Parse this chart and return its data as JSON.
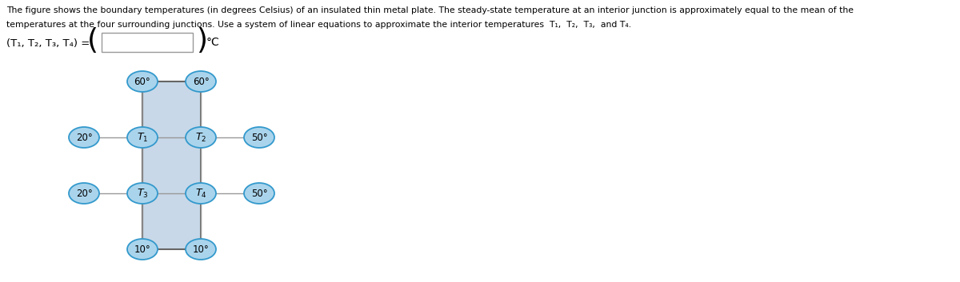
{
  "line1": "The figure shows the boundary temperatures (in degrees Celsius) of an insulated thin metal plate. The steady-state temperature at an interior junction is approximately equal to the mean of the",
  "line2": "temperatures at the four surrounding junctions. Use a system of linear equations to approximate the interior temperatures  T₁,  T₂,  T₃,  and T₄.",
  "eq_label": "(T₁, T₂, T₃, T₄) =",
  "degree_symbol": "°C",
  "plate_color": "#c8d8e8",
  "plate_border_color": "#666666",
  "node_fill": "#aad4ec",
  "node_border": "#3399cc",
  "line_color": "#999999",
  "boundary_nodes": [
    {
      "label": "60°",
      "col": 1,
      "row": 0
    },
    {
      "label": "60°",
      "col": 2,
      "row": 0
    },
    {
      "label": "20°",
      "col": 0,
      "row": 1
    },
    {
      "label": "50°",
      "col": 3,
      "row": 1
    },
    {
      "label": "20°",
      "col": 0,
      "row": 2
    },
    {
      "label": "50°",
      "col": 3,
      "row": 2
    },
    {
      "label": "10°",
      "col": 1,
      "row": 3
    },
    {
      "label": "10°",
      "col": 2,
      "row": 3
    }
  ],
  "interior_nodes": [
    {
      "label": "T₁",
      "col": 1,
      "row": 1
    },
    {
      "label": "T₂",
      "col": 2,
      "row": 1
    },
    {
      "label": "T₃",
      "col": 1,
      "row": 2
    },
    {
      "label": "T₄",
      "col": 2,
      "row": 2
    }
  ],
  "connections": [
    [
      [
        1,
        0
      ],
      [
        1,
        1
      ]
    ],
    [
      [
        2,
        0
      ],
      [
        2,
        1
      ]
    ],
    [
      [
        0,
        1
      ],
      [
        1,
        1
      ]
    ],
    [
      [
        1,
        1
      ],
      [
        2,
        1
      ]
    ],
    [
      [
        2,
        1
      ],
      [
        3,
        1
      ]
    ],
    [
      [
        1,
        1
      ],
      [
        1,
        2
      ]
    ],
    [
      [
        2,
        1
      ],
      [
        2,
        2
      ]
    ],
    [
      [
        0,
        2
      ],
      [
        1,
        2
      ]
    ],
    [
      [
        1,
        2
      ],
      [
        2,
        2
      ]
    ],
    [
      [
        2,
        2
      ],
      [
        3,
        2
      ]
    ],
    [
      [
        1,
        2
      ],
      [
        1,
        3
      ]
    ],
    [
      [
        2,
        2
      ],
      [
        2,
        3
      ]
    ]
  ],
  "figsize": [
    12.0,
    3.53
  ],
  "dpi": 100
}
